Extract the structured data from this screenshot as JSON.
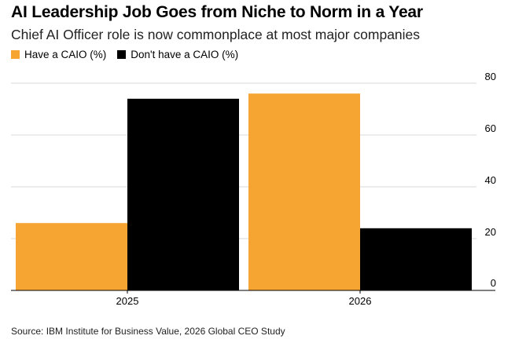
{
  "chart_data": {
    "type": "bar",
    "title": "AI Leadership Job Goes from Niche to Norm in a Year",
    "subtitle": "Chief AI Officer role is now commonplace at most major companies",
    "categories": [
      "2025",
      "2026"
    ],
    "series": [
      {
        "name": "Have a CAIO (%)",
        "values": [
          26,
          76
        ],
        "color": "#f7a532"
      },
      {
        "name": "Don't have a CAIO (%)",
        "values": [
          74,
          24
        ],
        "color": "#000000"
      }
    ],
    "ylim": [
      0,
      80
    ],
    "yticks": [
      "0",
      "20",
      "40",
      "60",
      "80"
    ],
    "ytick_values": [
      0,
      20,
      40,
      60,
      80
    ],
    "grid": true,
    "legend_position": "top-left",
    "source": "Source: IBM Institute for Business Value, 2026 Global CEO Study"
  }
}
